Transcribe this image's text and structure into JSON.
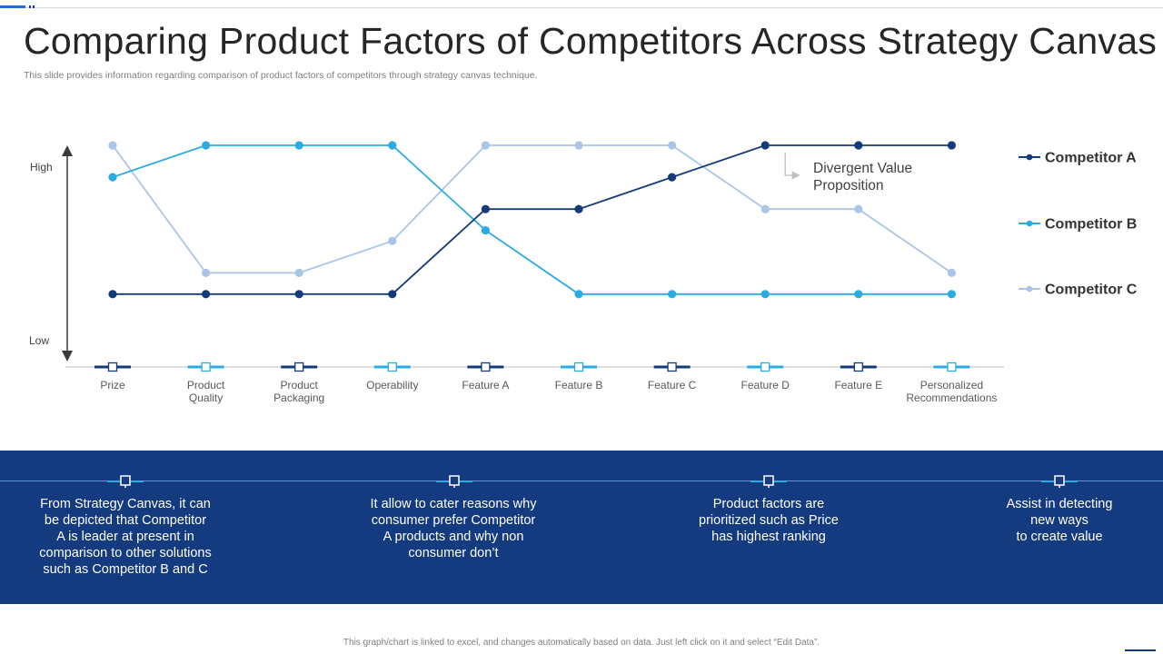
{
  "title": "Comparing Product Factors of Competitors Across Strategy Canvas",
  "subtitle": "This slide provides information regarding comparison of product factors of competitors through strategy canvas technique.",
  "footer": "This graph/chart is linked to excel, and changes automatically based on data. Just left click on it and select “Edit Data”.",
  "colors": {
    "competitor_a": "#143a78",
    "competitor_b": "#2aabe2",
    "competitor_c": "#aac5e8",
    "band": "#143a80"
  },
  "chart_data": {
    "type": "line",
    "title": "",
    "categories": [
      "Prize",
      "Product Quality",
      "Product Packaging",
      "Operability",
      "Feature A",
      "Feature B",
      "Feature C",
      "Feature D",
      "Feature E",
      "Personalized Recommendations"
    ],
    "category_lines": [
      [
        "Prize"
      ],
      [
        "Product",
        "Quality"
      ],
      [
        "Product",
        "Packaging"
      ],
      [
        "Operability"
      ],
      [
        "Feature A"
      ],
      [
        "Feature B"
      ],
      [
        "Feature C"
      ],
      [
        "Feature D"
      ],
      [
        "Feature E"
      ],
      [
        "Personalized",
        "Recommendations"
      ]
    ],
    "ylabel_high": "High",
    "ylabel_low": "Low",
    "ylim": [
      0,
      10
    ],
    "grid": false,
    "legend_position": "right",
    "series": [
      {
        "name": "Competitor A",
        "color": "#143a78",
        "values": [
          3,
          3,
          3,
          3,
          7,
          7,
          8.5,
          10,
          10,
          10
        ]
      },
      {
        "name": "Competitor B",
        "color": "#2aabe2",
        "values": [
          8.5,
          10,
          10,
          10,
          6,
          3,
          3,
          3,
          3,
          3
        ]
      },
      {
        "name": "Competitor C",
        "color": "#aac5e8",
        "values": [
          10,
          4,
          4,
          5.5,
          10,
          10,
          10,
          7,
          7,
          4
        ]
      }
    ],
    "annotation": {
      "text": "Divergent Value Proposition",
      "lines": [
        "Divergent Value",
        "Proposition"
      ],
      "anchor_category": "Feature D"
    }
  },
  "notes": [
    "From Strategy Canvas, it can\nbe depicted that Competitor\nA is leader at present in\ncomparison to other solutions\nsuch as Competitor B and C",
    "It allow to cater reasons why\nconsumer prefer Competitor\nA products and why non\nconsumer don’t",
    "Product factors are\nprioritized such as Price\nhas highest ranking",
    "Assist in detecting\nnew ways\nto create value"
  ]
}
